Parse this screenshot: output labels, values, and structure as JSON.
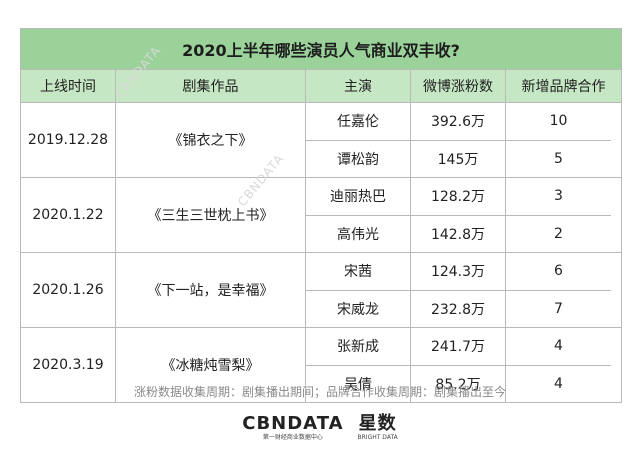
{
  "title": "2020上半年哪些演员人气商业双丰收?",
  "columns": [
    "上线时间",
    "剧集作品",
    "主演",
    "微博涨粉数",
    "新增品牌合作"
  ],
  "groups": [
    {
      "date": "2019.12.28",
      "drama": "《锦衣之下》",
      "actors": [
        {
          "name": "任嘉伦",
          "fans": "392.6万",
          "brands": "10"
        },
        {
          "name": "谭松韵",
          "fans": "145万",
          "brands": "5"
        }
      ]
    },
    {
      "date": "2020.1.22",
      "drama": "《三生三世枕上书》",
      "actors": [
        {
          "name": "迪丽热巴",
          "fans": "128.2万",
          "brands": "3"
        },
        {
          "name": "高伟光",
          "fans": "142.8万",
          "brands": "2"
        }
      ]
    },
    {
      "date": "2020.1.26",
      "drama": "《下一站，是幸福》",
      "actors": [
        {
          "name": "宋茜",
          "fans": "124.3万",
          "brands": "6"
        },
        {
          "name": "宋威龙",
          "fans": "232.8万",
          "brands": "7"
        }
      ]
    },
    {
      "date": "2020.3.19",
      "drama": "《冰糖炖雪梨》",
      "actors": [
        {
          "name": "张新成",
          "fans": "241.7万",
          "brands": "4"
        },
        {
          "name": "吴倩",
          "fans": "85.2万",
          "brands": "4"
        }
      ]
    }
  ],
  "footnote": "涨粉数据收集周期：剧集播出期间；品牌合作收集周期：剧集播出至今",
  "logos": {
    "cbndata": "CBNDATA",
    "cbndata_sub": "第一财经商业数据中心",
    "xingshu": "星数",
    "xingshu_sub": "BRIGHT DATA"
  },
  "watermark": "CBNDATA",
  "colors": {
    "title_bg": "#9bd29a",
    "header_bg": "#c6e7c3",
    "border": "#b9b9b9"
  }
}
